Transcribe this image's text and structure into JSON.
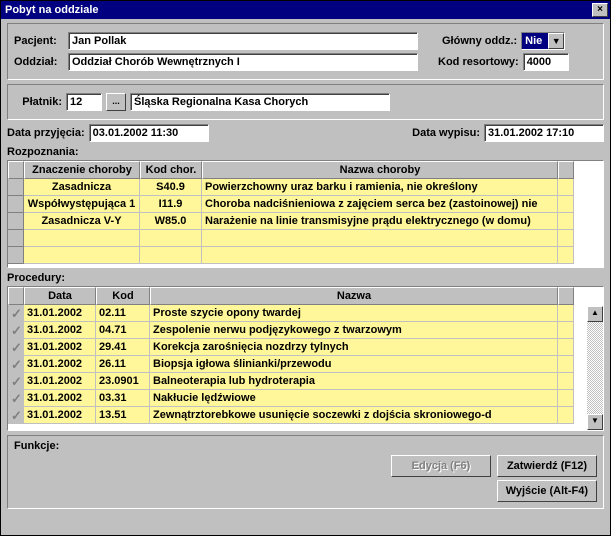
{
  "title": "Pobyt na oddziale",
  "labels": {
    "pacjent": "Pacjent:",
    "glowny": "Główny oddz.:",
    "oddzial": "Oddział:",
    "kod_resortowy": "Kod resortowy:",
    "platnik": "Płatnik:",
    "data_przyjecia": "Data przyjęcia:",
    "data_wypisu": "Data wypisu:",
    "rozpoznania": "Rozpoznania:",
    "procedury": "Procedury:",
    "funkcje": "Funkcje:"
  },
  "fields": {
    "pacjent": "Jan  Pollak",
    "glowny_oddz": "Nie",
    "oddzial": "Oddział Chorób Wewnętrznych I",
    "kod_resortowy": "4000",
    "platnik_kod": "12",
    "platnik_btn": "...",
    "platnik_nazwa": "Śląska Regionalna Kasa Chorych",
    "data_przyjecia": "03.01.2002 11:30",
    "data_wypisu": "31.01.2002 17:10"
  },
  "diag_headers": [
    "Znaczenie choroby",
    "Kod chor.",
    "Nazwa choroby"
  ],
  "diag_rows": [
    {
      "znaczenie": "Zasadnicza",
      "kod": "S40.9",
      "nazwa": "Powierzchowny uraz barku i ramienia, nie określony"
    },
    {
      "znaczenie": "Współwystępująca 1",
      "kod": "I11.9",
      "nazwa": "Choroba nadciśnieniowa z zajęciem serca bez (zastoinowej) nie"
    },
    {
      "znaczenie": "Zasadnicza V-Y",
      "kod": "W85.0",
      "nazwa": "Narażenie na linie transmisyjne prądu elektrycznego (w domu)"
    }
  ],
  "proc_headers": [
    "Data",
    "Kod",
    "Nazwa"
  ],
  "proc_rows": [
    {
      "data": "31.01.2002",
      "kod": "02.11",
      "nazwa": "Proste szycie opony twardej"
    },
    {
      "data": "31.01.2002",
      "kod": "04.71",
      "nazwa": "Zespolenie nerwu podjęzykowego z twarzowym"
    },
    {
      "data": "31.01.2002",
      "kod": "29.41",
      "nazwa": "Korekcja zarośnięcia nozdrzy tylnych"
    },
    {
      "data": "31.01.2002",
      "kod": "26.11",
      "nazwa": "Biopsja igłowa ślinianki/przewodu"
    },
    {
      "data": "31.01.2002",
      "kod": "23.0901",
      "nazwa": "Balneoterapia lub hydroterapia"
    },
    {
      "data": "31.01.2002",
      "kod": "03.31",
      "nazwa": "Nakłucie lędźwiowe"
    },
    {
      "data": "31.01.2002",
      "kod": "13.51",
      "nazwa": "Zewnątrztorebkowe usunięcie soczewki z dojścia skroniowego-d"
    }
  ],
  "buttons": {
    "edycja": "Edycja (F6)",
    "zatwierdz": "Zatwierdź (F12)",
    "wyjscie": "Wyjście (Alt-F4)"
  },
  "colors": {
    "titlebar_bg": "#000080",
    "window_bg": "#c0c0c0",
    "row_bg": "#fff799",
    "field_bg": "#ffffff"
  },
  "diag_col_widths": [
    16,
    116,
    62,
    356,
    16
  ],
  "proc_col_widths": [
    16,
    72,
    54,
    408,
    16
  ]
}
